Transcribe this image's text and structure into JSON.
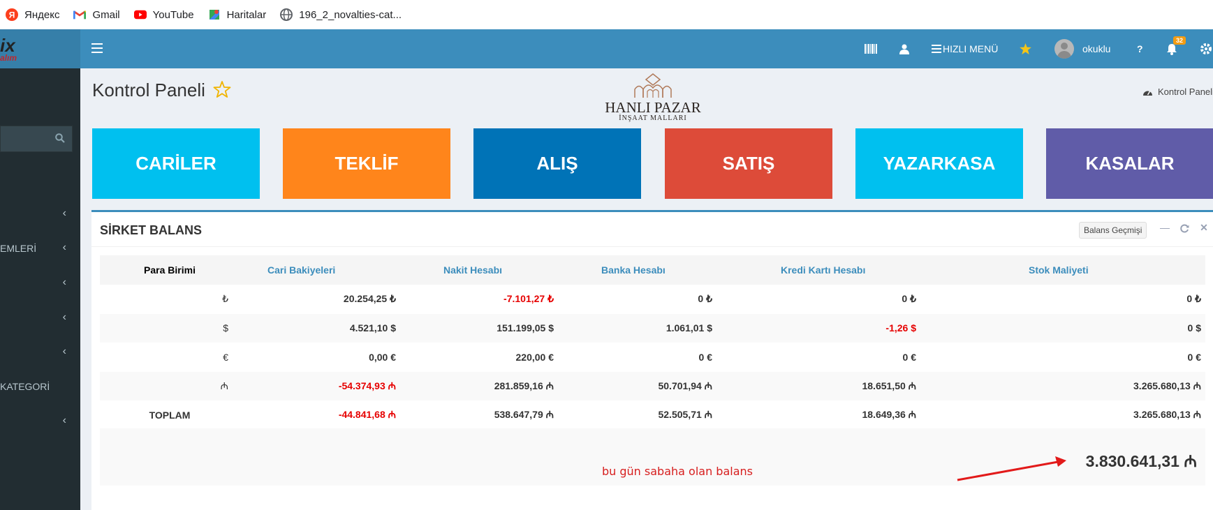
{
  "bookmarks": [
    {
      "label": "Яндекс",
      "icon": "yandex-icon"
    },
    {
      "label": "Gmail",
      "icon": "gmail-icon"
    },
    {
      "label": "YouTube",
      "icon": "youtube-icon"
    },
    {
      "label": "Haritalar",
      "icon": "maps-icon"
    },
    {
      "label": "196_2_novalties-cat...",
      "icon": "globe-icon"
    }
  ],
  "nav": {
    "logo_text": "ix",
    "logo_sub": "alım",
    "quick_menu": "HIZLI MENÜ",
    "user_name": "okuklu",
    "help": "?",
    "notification_count": "32",
    "colors": {
      "nav_bg": "#3c8dbc",
      "logo_bg": "#367fa9",
      "sidebar_bg": "#222d32",
      "badge": "#f39c12"
    }
  },
  "sidebar": {
    "items": [
      {
        "label": ""
      },
      {
        "label": "EMLERİ"
      },
      {
        "label": ""
      },
      {
        "label": ""
      },
      {
        "label": ""
      },
      {
        "label": "KATEGORİ"
      },
      {
        "label": ""
      }
    ]
  },
  "page": {
    "title": "Kontrol Paneli",
    "brand_name": "HANLI PAZAR",
    "brand_sub": "İNŞAAT MALLARI",
    "breadcrumb": "Kontrol Paneli"
  },
  "tiles": [
    {
      "label": "CARİLER",
      "color": "#00c0ef"
    },
    {
      "label": "TEKLİF",
      "color": "#ff851b"
    },
    {
      "label": "ALIŞ",
      "color": "#0073b7"
    },
    {
      "label": "SATIŞ",
      "color": "#dd4b39"
    },
    {
      "label": "YAZARKASA",
      "color": "#00c0ef"
    },
    {
      "label": "KASALAR",
      "color": "#605ca8"
    }
  ],
  "balance": {
    "title": "SİRKET BALANS",
    "history_button": "Balans Geçmişi",
    "headers": [
      "Para Birimi",
      "Cari Bakiyeleri",
      "Nakit Hesabı",
      "Banka Hesabı",
      "Kredi Kartı Hesabı",
      "Stok Maliyeti"
    ],
    "rows": [
      {
        "currency": "₺",
        "cari": "20.254,25 ₺",
        "nakit": "-7.101,27 ₺",
        "banka": "0 ₺",
        "kredi": "0 ₺",
        "stok": "0 ₺"
      },
      {
        "currency": "$",
        "cari": "4.521,10 $",
        "nakit": "151.199,05 $",
        "banka": "1.061,01 $",
        "kredi": "-1,26 $",
        "stok": "0 $"
      },
      {
        "currency": "€",
        "cari": "0,00 €",
        "nakit": "220,00 €",
        "banka": "0 €",
        "kredi": "0 €",
        "stok": "0 €"
      },
      {
        "currency": "₼",
        "cari": "-54.374,93 ₼",
        "nakit": "281.859,16 ₼",
        "banka": "50.701,94 ₼",
        "kredi": "18.651,50 ₼",
        "stok": "3.265.680,13 ₼"
      }
    ],
    "total_row": {
      "currency": "TOPLAM",
      "cari": "-44.841,68 ₼",
      "nakit": "538.647,79 ₼",
      "banka": "52.505,71 ₼",
      "kredi": "18.649,36 ₼",
      "stok": "3.265.680,13 ₼"
    },
    "grand_total": "3.830.641,31 ₼",
    "annotation": "bu gün sabaha olan balans",
    "negative_color": "#e60000",
    "annotation_color": "#d71e1e"
  }
}
